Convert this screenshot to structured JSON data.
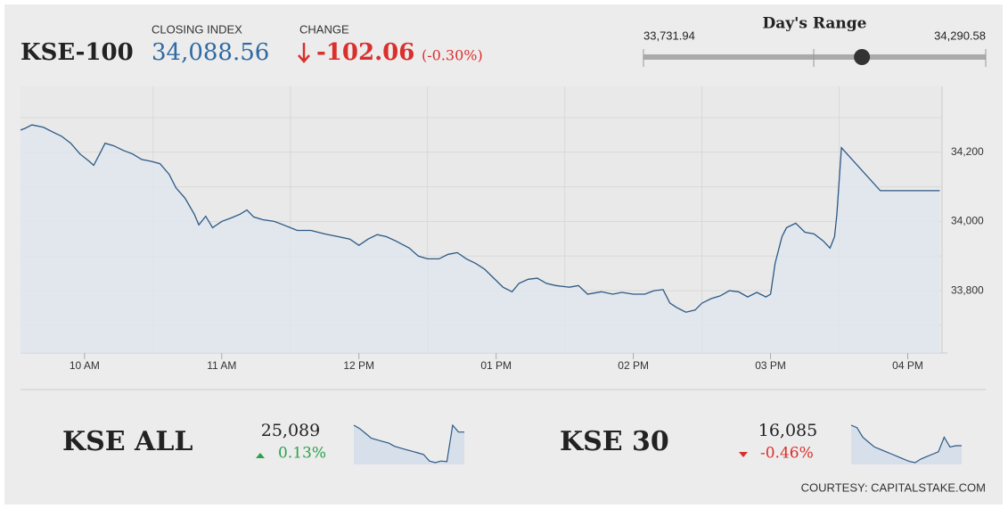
{
  "header": {
    "index_name": "KSE-100",
    "closing_label": "CLOSING INDEX",
    "closing": {
      "value": 34088.56,
      "label": "34,088.56"
    },
    "change_label": "CHANGE",
    "change_value": "-102.06",
    "change_pct": "(-0.30%)"
  },
  "range": {
    "title": "Day's Range",
    "min": {
      "value": 33731.94,
      "label": "33,731.94"
    },
    "max": {
      "value": 34290.58,
      "label": "34,290.58"
    }
  },
  "chart_data": [
    {
      "type": "line",
      "color": "#2c5985",
      "fill": "#dfe6ee",
      "grid": true,
      "x": [
        "09:32",
        "09:34",
        "09:37",
        "09:42",
        "09:46",
        "09:50",
        "09:54",
        "09:58",
        "10:02",
        "10:04",
        "10:07",
        "10:09",
        "10:13",
        "10:17",
        "10:21",
        "10:25",
        "10:29",
        "10:33",
        "10:37",
        "10:40",
        "10:44",
        "10:48",
        "10:50",
        "10:53",
        "10:56",
        "11:00",
        "11:04",
        "11:08",
        "11:11",
        "11:14",
        "11:18",
        "11:23",
        "11:27",
        "11:33",
        "11:39",
        "11:45",
        "11:51",
        "11:56",
        "12:00",
        "12:04",
        "12:08",
        "12:12",
        "12:16",
        "12:22",
        "12:26",
        "12:30",
        "12:35",
        "12:39",
        "12:43",
        "12:47",
        "12:51",
        "12:55",
        "12:59",
        "13:03",
        "13:07",
        "13:10",
        "13:14",
        "13:18",
        "13:22",
        "13:26",
        "13:32",
        "13:36",
        "13:40",
        "13:46",
        "13:51",
        "13:55",
        "14:00",
        "14:05",
        "14:09",
        "14:13",
        "14:16",
        "14:19",
        "14:23",
        "14:27",
        "14:30",
        "14:34",
        "14:38",
        "14:42",
        "14:46",
        "14:50",
        "14:54",
        "14:58",
        "15:00",
        "15:02",
        "15:05",
        "15:07",
        "15:11",
        "15:15",
        "15:19",
        "15:23",
        "15:26",
        "15:28",
        "15:29",
        "15:31",
        "15:48",
        "16:14"
      ],
      "values": [
        34264,
        34269,
        34279,
        34272,
        34259,
        34246,
        34226,
        34195,
        34174,
        34162,
        34200,
        34226,
        34218,
        34205,
        34195,
        34179,
        34174,
        34167,
        34136,
        34097,
        34067,
        34021,
        33990,
        34015,
        33982,
        34000,
        34010,
        34021,
        34033,
        34013,
        34005,
        34000,
        33990,
        33974,
        33974,
        33964,
        33956,
        33949,
        33931,
        33949,
        33962,
        33956,
        33944,
        33923,
        33900,
        33892,
        33892,
        33905,
        33910,
        33892,
        33879,
        33862,
        33836,
        33810,
        33797,
        33821,
        33833,
        33836,
        33821,
        33815,
        33810,
        33815,
        33790,
        33797,
        33790,
        33795,
        33790,
        33790,
        33800,
        33803,
        33764,
        33751,
        33738,
        33744,
        33764,
        33777,
        33785,
        33800,
        33797,
        33782,
        33795,
        33782,
        33790,
        33879,
        33956,
        33982,
        33995,
        33969,
        33964,
        33944,
        33923,
        33956,
        34021,
        34213,
        34089,
        34089
      ],
      "xlim": [
        "09:32",
        "16:15"
      ],
      "xticks": [
        {
          "value": "10:00",
          "label": "10 AM"
        },
        {
          "value": "11:00",
          "label": "11 AM"
        },
        {
          "value": "12:00",
          "label": "12 PM"
        },
        {
          "value": "13:00",
          "label": "01 PM"
        },
        {
          "value": "14:00",
          "label": "02 PM"
        },
        {
          "value": "15:00",
          "label": "03 PM"
        },
        {
          "value": "16:00",
          "label": "04 PM"
        }
      ],
      "ylim": [
        33620,
        34390
      ],
      "yticks": [
        {
          "value": 33800,
          "label": "33,800"
        },
        {
          "value": 34000,
          "label": "34,000"
        },
        {
          "value": 34200,
          "label": "34,200"
        }
      ]
    },
    {
      "type": "line",
      "title": "KSE ALL",
      "value_label": "25,089",
      "change_label": "0.13%",
      "color": "#2c5985",
      "fill": "#d7e0ea",
      "values": [
        25110,
        25100,
        25085,
        25070,
        25065,
        25060,
        25055,
        25045,
        25040,
        25035,
        25030,
        25025,
        25020,
        25000,
        24995,
        25000,
        24998,
        25110,
        25089,
        25089
      ]
    },
    {
      "type": "line",
      "title": "KSE 30",
      "value_label": "16,085",
      "change_label": "-0.46%",
      "color": "#2c5985",
      "fill": "#d7e0ea",
      "values": [
        16170,
        16160,
        16120,
        16100,
        16080,
        16070,
        16060,
        16050,
        16040,
        16030,
        16020,
        16015,
        16030,
        16040,
        16050,
        16060,
        16120,
        16080,
        16085,
        16085
      ]
    }
  ],
  "footer": "COURTESY: CAPITALSTAKE.COM"
}
